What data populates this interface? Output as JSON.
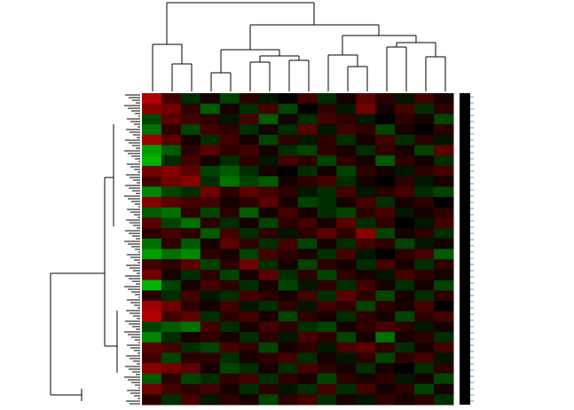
{
  "chart_data": {
    "type": "heatmap",
    "colors": {
      "low": "#00e000",
      "mid": "#000000",
      "high": "#e00000"
    },
    "vlim": [
      -1,
      1
    ],
    "values": [
      [
        0.8,
        0.3,
        -0.2,
        0.1,
        -0.3,
        0.2,
        -0.1,
        0.0,
        0.3,
        -0.2,
        0.1,
        0.4,
        0.2,
        -0.1,
        0.3,
        0.1
      ],
      [
        0.6,
        0.5,
        0.2,
        -0.4,
        0.1,
        -0.2,
        0.3,
        -0.3,
        0.0,
        0.2,
        -0.1,
        0.5,
        0.1,
        0.3,
        -0.2,
        0.2
      ],
      [
        -0.3,
        0.4,
        0.3,
        0.2,
        -0.1,
        0.3,
        -0.4,
        0.1,
        -0.2,
        0.3,
        0.2,
        -0.1,
        0.0,
        0.2,
        0.1,
        -0.3
      ],
      [
        -0.5,
        0.2,
        -0.3,
        0.3,
        0.2,
        -0.2,
        0.1,
        -0.2,
        0.4,
        -0.1,
        0.3,
        0.2,
        -0.3,
        0.1,
        0.0,
        0.2
      ],
      [
        0.7,
        0.4,
        0.1,
        -0.2,
        0.3,
        0.1,
        -0.3,
        0.2,
        -0.1,
        0.2,
        -0.2,
        0.1,
        0.3,
        -0.2,
        0.2,
        -0.1
      ],
      [
        -0.7,
        -0.4,
        0.2,
        0.4,
        0.2,
        0.3,
        0.1,
        -0.2,
        -0.3,
        0.2,
        0.1,
        -0.2,
        0.2,
        0.1,
        -0.3,
        0.4
      ],
      [
        -0.8,
        -0.2,
        0.3,
        0.1,
        -0.2,
        0.2,
        -0.1,
        0.3,
        0.2,
        -0.3,
        0.2,
        0.1,
        -0.4,
        0.2,
        0.1,
        -0.2
      ],
      [
        0.5,
        0.6,
        0.4,
        -0.3,
        -0.4,
        -0.2,
        0.1,
        0.0,
        -0.2,
        0.1,
        -0.3,
        0.2,
        0.1,
        -0.1,
        0.2,
        0.3
      ],
      [
        0.3,
        0.5,
        0.6,
        -0.2,
        -0.5,
        -0.3,
        -0.4,
        0.1,
        0.2,
        0.3,
        -0.2,
        0.1,
        0.0,
        0.2,
        -0.1,
        0.1
      ],
      [
        -0.6,
        -0.3,
        -0.2,
        0.5,
        0.2,
        0.4,
        0.3,
        0.2,
        -0.1,
        -0.2,
        0.3,
        -0.1,
        0.2,
        0.3,
        -0.2,
        -0.3
      ],
      [
        0.6,
        0.4,
        0.3,
        0.3,
        0.1,
        0.2,
        0.4,
        0.1,
        -0.3,
        -0.2,
        0.1,
        0.3,
        -0.2,
        0.1,
        0.2,
        0.0
      ],
      [
        -0.4,
        -0.5,
        0.2,
        -0.3,
        0.2,
        -0.4,
        0.1,
        0.3,
        0.1,
        -0.2,
        -0.3,
        0.2,
        0.3,
        -0.1,
        0.1,
        0.2
      ],
      [
        0.4,
        -0.3,
        -0.5,
        0.2,
        -0.2,
        0.1,
        -0.3,
        0.2,
        0.3,
        0.1,
        0.4,
        -0.2,
        0.2,
        0.0,
        -0.1,
        0.3
      ],
      [
        0.2,
        0.3,
        0.2,
        -0.4,
        0.3,
        -0.2,
        0.2,
        -0.1,
        0.2,
        0.4,
        0.2,
        0.6,
        -0.3,
        0.1,
        0.2,
        -0.2
      ],
      [
        -0.5,
        0.2,
        -0.4,
        0.1,
        0.4,
        0.2,
        -0.2,
        0.3,
        -0.3,
        0.1,
        -0.2,
        0.3,
        0.2,
        -0.3,
        -0.1,
        0.1
      ],
      [
        -0.7,
        -0.5,
        -0.6,
        0.2,
        0.1,
        -0.3,
        0.3,
        0.2,
        0.1,
        -0.2,
        0.3,
        -0.1,
        0.0,
        0.2,
        0.3,
        -0.4
      ],
      [
        0.3,
        0.2,
        0.4,
        -0.3,
        0.2,
        0.5,
        -0.2,
        0.1,
        -0.3,
        0.2,
        0.1,
        -0.2,
        0.3,
        0.1,
        -0.2,
        0.2
      ],
      [
        0.5,
        0.1,
        -0.2,
        0.2,
        -0.3,
        0.1,
        0.4,
        -0.2,
        0.2,
        -0.3,
        0.2,
        0.1,
        -0.1,
        0.3,
        0.2,
        0.1
      ],
      [
        -0.8,
        -0.3,
        0.1,
        0.3,
        0.2,
        -0.2,
        0.1,
        -0.3,
        -0.1,
        0.2,
        -0.2,
        0.3,
        0.1,
        -0.2,
        0.1,
        -0.3
      ],
      [
        0.2,
        -0.2,
        0.3,
        -0.1,
        -0.2,
        0.3,
        0.2,
        0.1,
        0.3,
        -0.2,
        0.4,
        0.2,
        -0.3,
        0.1,
        -0.2,
        0.2
      ],
      [
        0.7,
        0.5,
        0.2,
        0.1,
        0.3,
        -0.1,
        -0.2,
        0.2,
        -0.1,
        0.3,
        0.2,
        -0.3,
        0.2,
        0.1,
        0.3,
        0.0
      ],
      [
        0.8,
        0.3,
        0.4,
        -0.2,
        0.2,
        0.3,
        0.1,
        -0.3,
        0.2,
        0.1,
        -0.2,
        0.2,
        0.1,
        -0.3,
        0.2,
        0.3
      ],
      [
        -0.3,
        -0.4,
        -0.5,
        0.3,
        -0.2,
        0.1,
        0.3,
        0.2,
        -0.2,
        -0.3,
        0.1,
        0.2,
        0.3,
        0.2,
        -0.1,
        0.1
      ],
      [
        -0.6,
        -0.2,
        0.1,
        0.2,
        0.1,
        -0.2,
        0.2,
        -0.1,
        0.3,
        0.2,
        -0.3,
        0.1,
        -0.5,
        0.1,
        0.2,
        -0.2
      ],
      [
        0.4,
        0.3,
        -0.2,
        -0.3,
        0.3,
        0.2,
        -0.3,
        0.1,
        0.2,
        -0.1,
        0.3,
        0.4,
        0.2,
        -0.2,
        0.1,
        0.3
      ],
      [
        0.3,
        -0.3,
        0.2,
        0.2,
        -0.2,
        0.1,
        0.2,
        0.3,
        -0.2,
        0.1,
        -0.1,
        0.2,
        -0.3,
        0.2,
        0.3,
        -0.1
      ],
      [
        0.6,
        0.5,
        0.4,
        0.1,
        -0.3,
        -0.2,
        0.1,
        -0.2,
        0.3,
        0.2,
        0.1,
        -0.2,
        0.1,
        0.0,
        -0.2,
        0.2
      ],
      [
        -0.4,
        0.2,
        -0.3,
        -0.2,
        0.2,
        0.3,
        -0.2,
        0.2,
        0.1,
        -0.3,
        0.2,
        0.1,
        0.2,
        -0.1,
        0.1,
        -0.3
      ],
      [
        0.5,
        0.3,
        0.2,
        0.3,
        0.1,
        -0.2,
        0.2,
        -0.1,
        -0.2,
        0.3,
        -0.2,
        0.3,
        0.1,
        0.2,
        -0.3,
        0.1
      ],
      [
        0.2,
        -0.2,
        0.3,
        -0.1,
        0.2,
        0.1,
        -0.3,
        0.2,
        0.3,
        -0.2,
        0.1,
        -0.1,
        0.2,
        0.1,
        0.2,
        -0.2
      ]
    ]
  }
}
